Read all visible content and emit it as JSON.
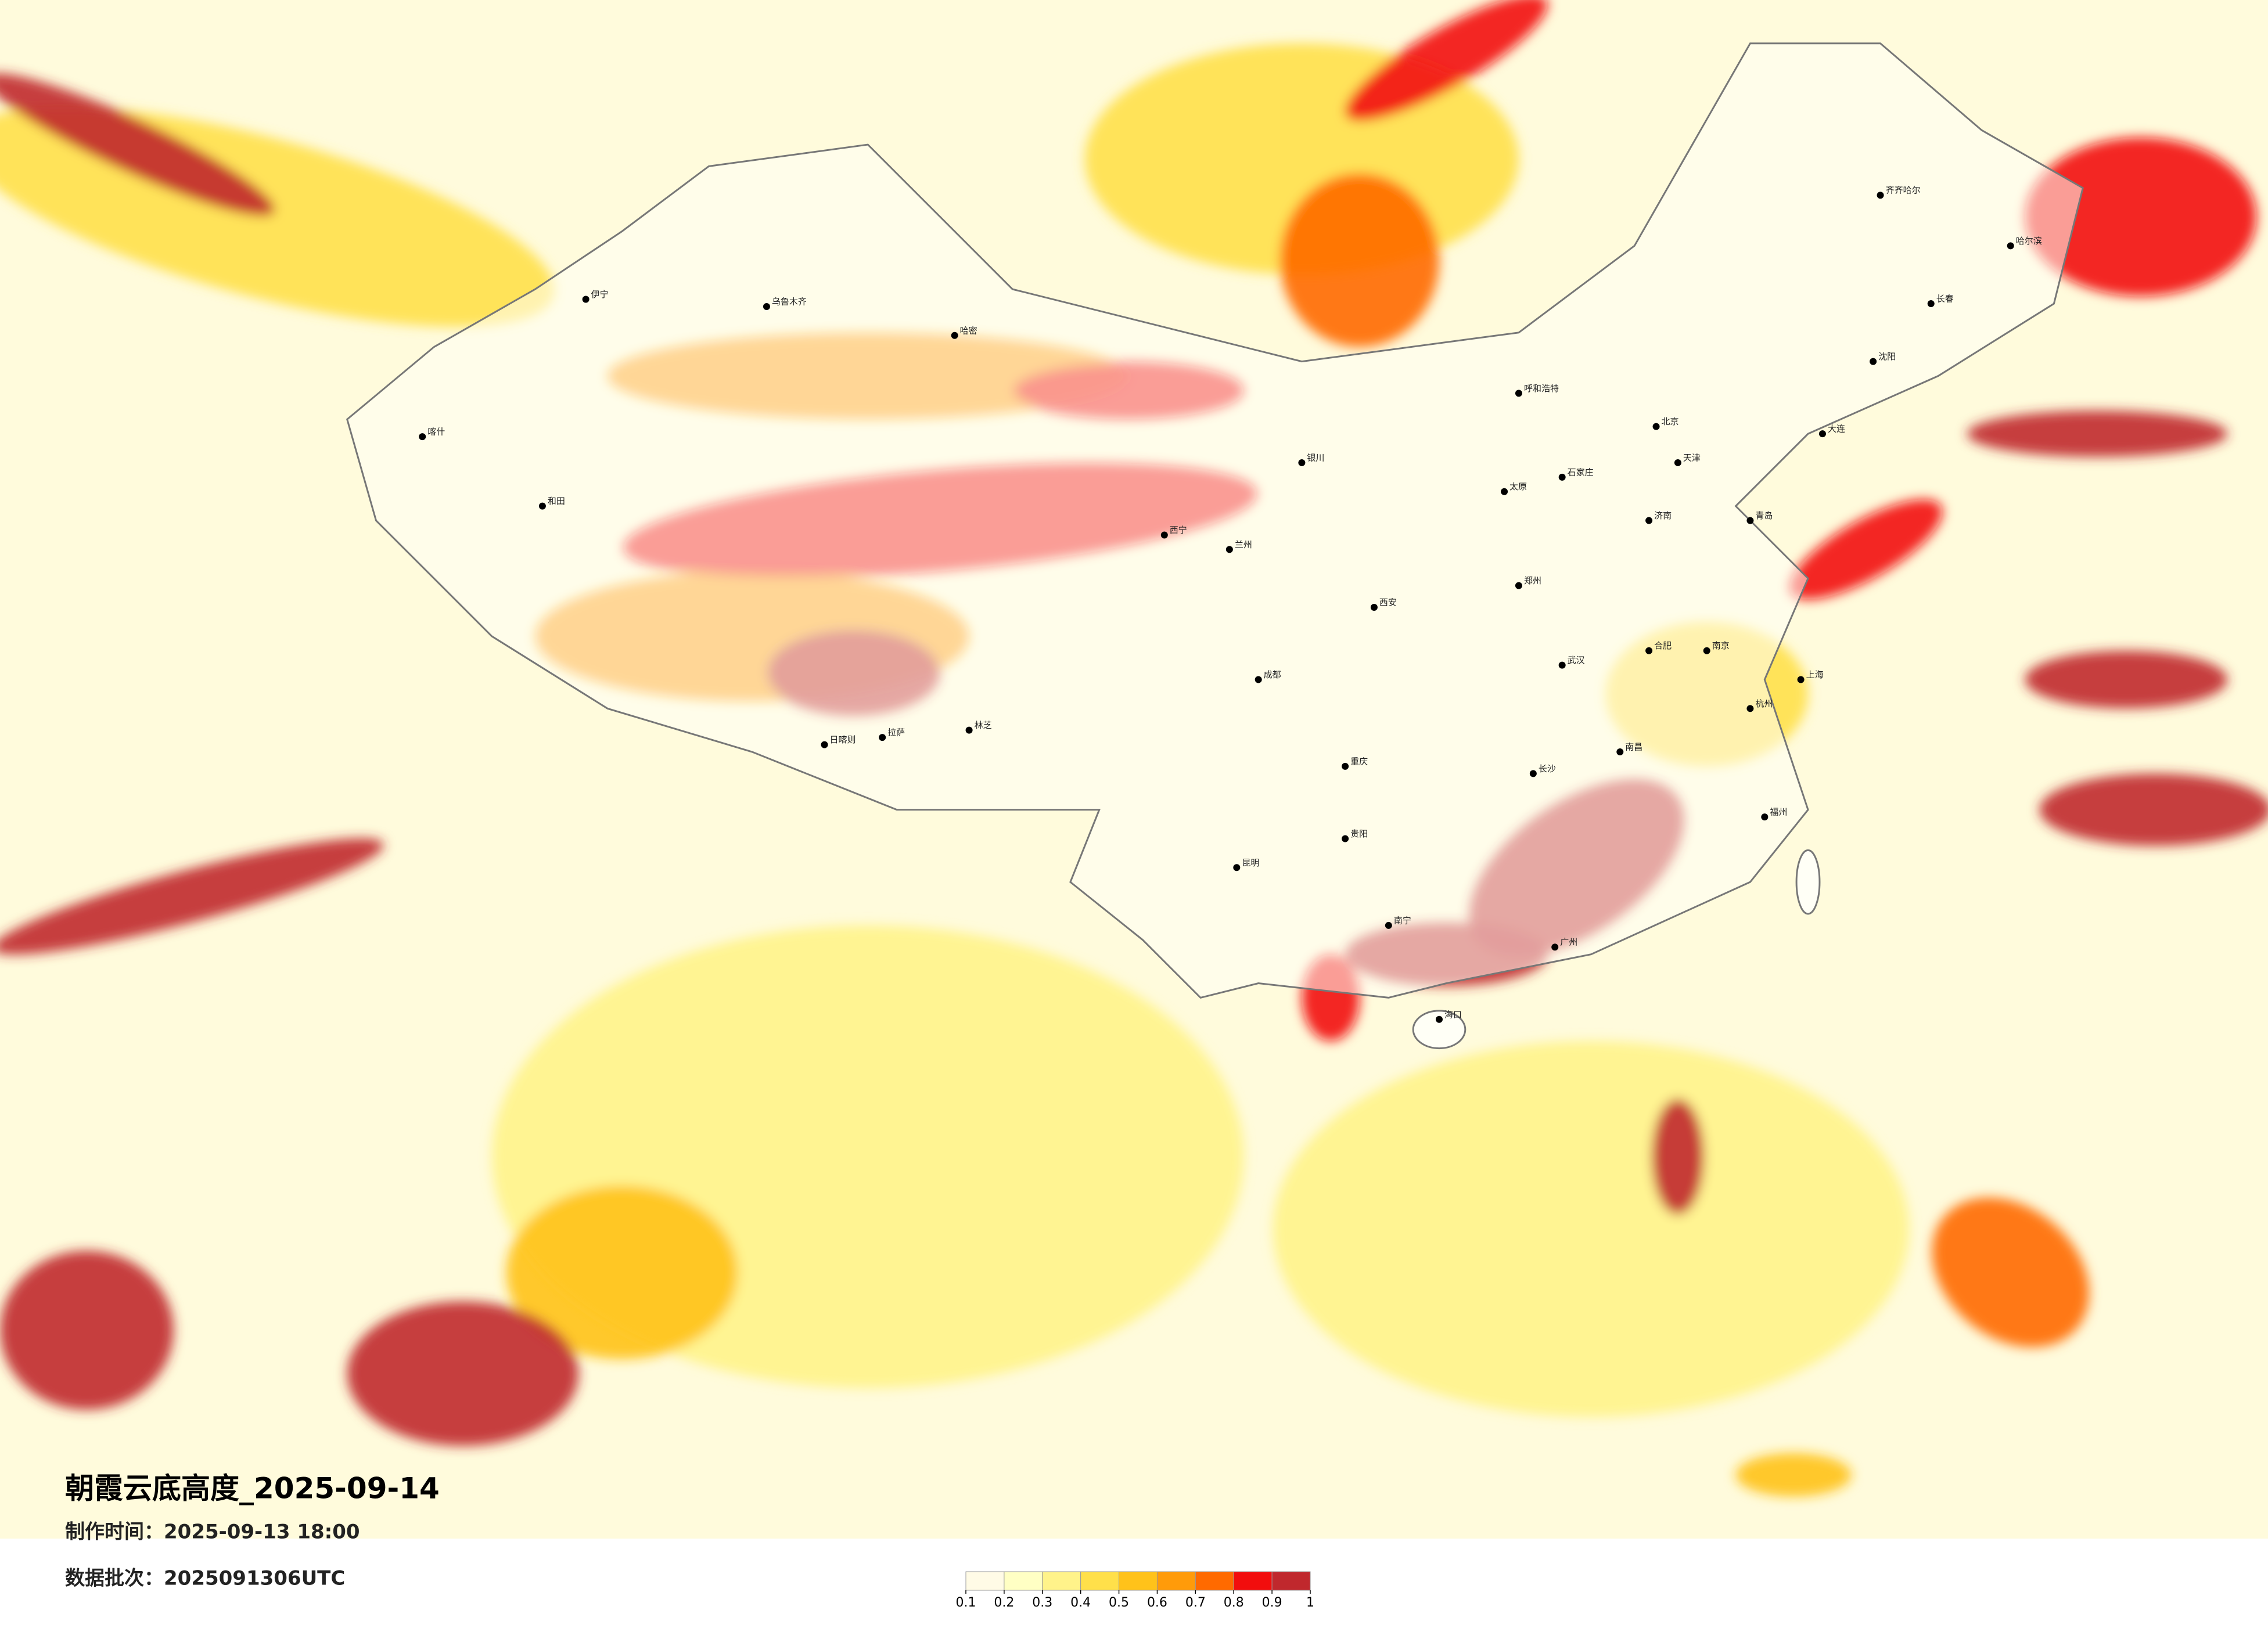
{
  "title": "朝霞云底高度_2025-09-14",
  "production_time": "制作时间：2025-09-13 18:00",
  "data_batch": "数据批次：2025091306UTC",
  "legend": {
    "ticks": [
      0.1,
      0.2,
      0.3,
      0.4,
      0.5,
      0.6,
      0.7,
      0.8,
      0.9,
      1
    ],
    "colors": [
      "#fffbe6",
      "#ffffc4",
      "#fff38a",
      "#ffe04a",
      "#ffc21a",
      "#ff9b0a",
      "#ff6a00",
      "#f20d0d",
      "#c0282d"
    ]
  },
  "cities": [
    "北京",
    "天津",
    "上海",
    "广州",
    "重庆",
    "成都",
    "昆明",
    "拉萨",
    "乌鲁木齐",
    "哈尔滨",
    "长春",
    "沈阳",
    "西宁",
    "兰州",
    "银川",
    "呼和浩特",
    "西安",
    "郑州",
    "武汉",
    "长沙",
    "南昌",
    "福州",
    "南宁",
    "海口",
    "贵阳",
    "济南",
    "合肥",
    "南京",
    "杭州",
    "太原",
    "石家庄",
    "哈密",
    "伊宁",
    "喀什",
    "和田",
    "日喀则",
    "林芝",
    "齐齐哈尔",
    "大连",
    "青岛"
  ]
}
